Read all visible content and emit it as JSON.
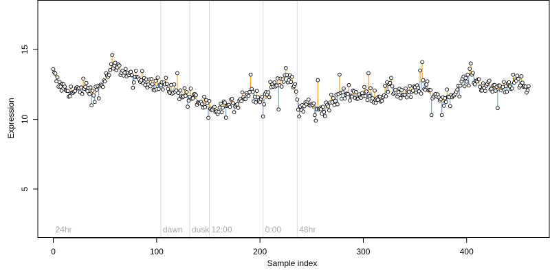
{
  "chart_data": {
    "type": "scatter",
    "xlabel": "Sample index",
    "ylabel": "Expression",
    "xlim": [
      -15,
      480
    ],
    "ylim": [
      1.5,
      18.5
    ],
    "x_ticks": [
      0,
      100,
      200,
      300,
      400
    ],
    "y_ticks": [
      5,
      10,
      15
    ],
    "grid": false,
    "legend": "none",
    "colors": {
      "points_outline": "#000000",
      "line_up": "#f5a623",
      "line_down": "#7aa3d6",
      "smooth_line": "#a0a0a0",
      "phase_lines": "#d8d8d8",
      "phase_labels": "#a8a8a8"
    },
    "phase_markers": [
      {
        "x": 0,
        "label": "24hr"
      },
      {
        "x": 104,
        "label": "dawn"
      },
      {
        "x": 132,
        "label": "dusk"
      },
      {
        "x": 151,
        "label": "12:00"
      },
      {
        "x": 203,
        "label": "0:00"
      },
      {
        "x": 236,
        "label": "48hr"
      }
    ],
    "anchors": [
      [
        0,
        13.3
      ],
      [
        5,
        12.5
      ],
      [
        12,
        12.2
      ],
      [
        20,
        11.9
      ],
      [
        30,
        12.3
      ],
      [
        40,
        12.0
      ],
      [
        48,
        12.6
      ],
      [
        58,
        13.7
      ],
      [
        68,
        13.5
      ],
      [
        78,
        12.8
      ],
      [
        90,
        12.9
      ],
      [
        100,
        12.5
      ],
      [
        112,
        12.3
      ],
      [
        122,
        12.0
      ],
      [
        132,
        11.7
      ],
      [
        142,
        11.2
      ],
      [
        151,
        10.8
      ],
      [
        153,
        10.5
      ],
      [
        165,
        10.8
      ],
      [
        175,
        11.0
      ],
      [
        185,
        11.8
      ],
      [
        195,
        11.9
      ],
      [
        203,
        11.4
      ],
      [
        210,
        12.2
      ],
      [
        218,
        12.7
      ],
      [
        226,
        13.0
      ],
      [
        234,
        12.3
      ],
      [
        238,
        10.6
      ],
      [
        246,
        11.2
      ],
      [
        256,
        10.6
      ],
      [
        266,
        11.0
      ],
      [
        276,
        11.5
      ],
      [
        286,
        12.0
      ],
      [
        296,
        11.7
      ],
      [
        306,
        11.8
      ],
      [
        316,
        11.6
      ],
      [
        326,
        12.3
      ],
      [
        336,
        11.9
      ],
      [
        346,
        11.8
      ],
      [
        356,
        12.3
      ],
      [
        366,
        12.0
      ],
      [
        376,
        11.5
      ],
      [
        386,
        11.7
      ],
      [
        396,
        12.6
      ],
      [
        406,
        13.0
      ],
      [
        414,
        12.5
      ],
      [
        424,
        12.2
      ],
      [
        436,
        12.3
      ],
      [
        446,
        12.7
      ],
      [
        455,
        12.4
      ],
      [
        460,
        12.0
      ]
    ],
    "outliers": [
      [
        57,
        14.6
      ],
      [
        37,
        11.0
      ],
      [
        44,
        11.5
      ],
      [
        116,
        11.9
      ],
      [
        120,
        13.3
      ],
      [
        130,
        10.9
      ],
      [
        150,
        10.1
      ],
      [
        191,
        13.2
      ],
      [
        203,
        10.2
      ],
      [
        218,
        10.7
      ],
      [
        238,
        10.2
      ],
      [
        254,
        9.9
      ],
      [
        256,
        9.9
      ],
      [
        256,
        12.8
      ],
      [
        277,
        13.2
      ],
      [
        305,
        13.3
      ],
      [
        355,
        13.5
      ],
      [
        357,
        14.1
      ],
      [
        366,
        10.3
      ],
      [
        376,
        10.3
      ],
      [
        404,
        14.0
      ],
      [
        430,
        10.8
      ],
      [
        445,
        13.2
      ]
    ]
  }
}
